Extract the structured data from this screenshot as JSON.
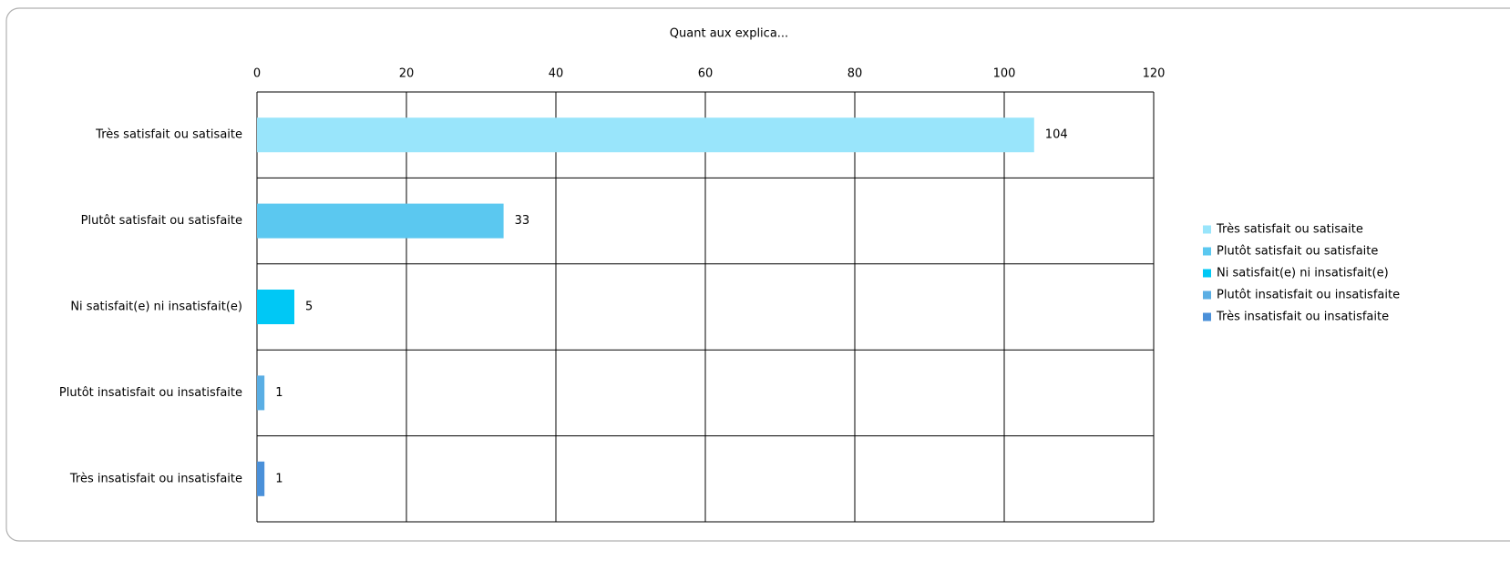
{
  "chart_data": {
    "type": "bar",
    "orientation": "horizontal",
    "title": "Quant aux explica...",
    "categories": [
      "Très satisfait ou satisaite",
      "Plutôt satisfait ou satisfaite",
      "Ni satisfait(e) ni insatisfait(e)",
      "Plutôt insatisfait ou insatisfaite",
      "Très insatisfait ou insatisfaite"
    ],
    "values": [
      104,
      33,
      5,
      1,
      1
    ],
    "colors": [
      "#99e5fb",
      "#5bc8f0",
      "#00c8f5",
      "#5aaee4",
      "#4a90d9"
    ],
    "xlim": [
      0,
      120
    ],
    "xticks": [
      0,
      20,
      40,
      60,
      80,
      100,
      120
    ],
    "grid": true,
    "legend": "right"
  }
}
